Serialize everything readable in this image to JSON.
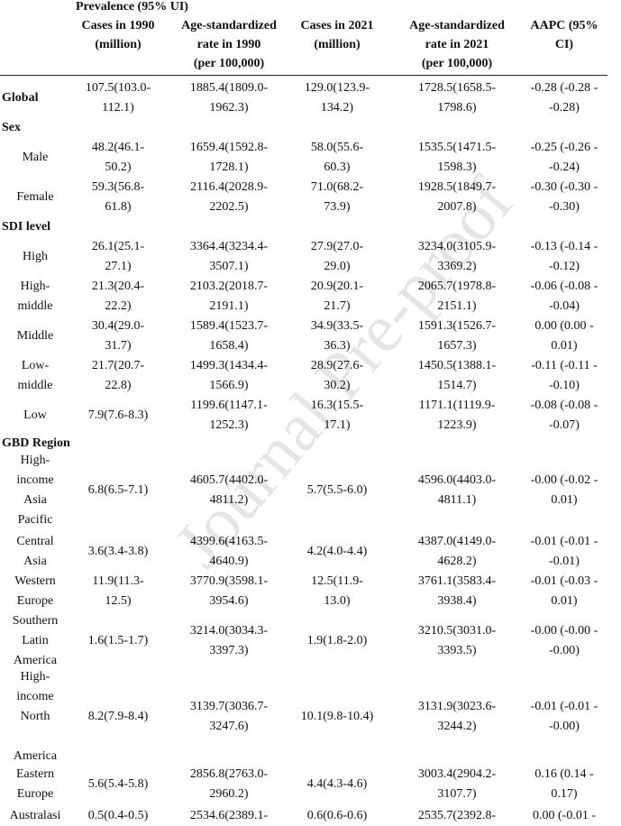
{
  "header": {
    "super_title": "Prevalence (95% UI)",
    "col1": [
      "Cases in 1990",
      "(million)"
    ],
    "col2": [
      "Age-standardized",
      "rate in 1990",
      "(per 100,000)"
    ],
    "col3": [
      "Cases in 2021",
      "(million)"
    ],
    "col4": [
      "Age-standardized",
      "rate in 2021",
      "(per 100,000)"
    ],
    "col5": [
      "AAPC (95%",
      "CI)"
    ]
  },
  "watermark": "Journal Pre-proof",
  "rows": [
    {
      "label": [
        "Global"
      ],
      "kind": "group-bold",
      "cells": [
        [
          "107.5(103.0-",
          "112.1)"
        ],
        [
          "1885.4(1809.0-",
          "1962.3)"
        ],
        [
          "129.0(123.9-",
          "134.2)"
        ],
        [
          "1728.5(1658.5-",
          "1798.6)"
        ],
        [
          "-0.28 (-0.28 -",
          "-0.28)"
        ]
      ]
    },
    {
      "label": [
        "Sex"
      ],
      "kind": "section"
    },
    {
      "label": [
        "Male"
      ],
      "kind": "sub",
      "cells": [
        [
          "48.2(46.1-",
          "50.2)"
        ],
        [
          "1659.4(1592.8-",
          "1728.1)"
        ],
        [
          "58.0(55.6-",
          "60.3)"
        ],
        [
          "1535.5(1471.5-",
          "1598.3)"
        ],
        [
          "-0.25 (-0.26 -",
          "-0.24)"
        ]
      ]
    },
    {
      "label": [
        "Female"
      ],
      "kind": "sub",
      "cells": [
        [
          "59.3(56.8-",
          "61.8)"
        ],
        [
          "2116.4(2028.9-",
          "2202.5)"
        ],
        [
          "71.0(68.2-",
          "73.9)"
        ],
        [
          "1928.5(1849.7-",
          "2007.8)"
        ],
        [
          "-0.30 (-0.30 -",
          "-0.30)"
        ]
      ]
    },
    {
      "label": [
        "SDI level"
      ],
      "kind": "section"
    },
    {
      "label": [
        "High"
      ],
      "kind": "sub",
      "cells": [
        [
          "26.1(25.1-",
          "27.1)"
        ],
        [
          "3364.4(3234.4-",
          "3507.1)"
        ],
        [
          "27.9(27.0-",
          "29.0)"
        ],
        [
          "3234.0(3105.9-",
          "3369.2)"
        ],
        [
          "-0.13 (-0.14 -",
          "-0.12)"
        ]
      ]
    },
    {
      "label": [
        "High-",
        "middle"
      ],
      "kind": "sub",
      "cells": [
        [
          "21.3(20.4-",
          "22.2)"
        ],
        [
          "2103.2(2018.7-",
          "2191.1)"
        ],
        [
          "20.9(20.1-",
          "21.7)"
        ],
        [
          "2065.7(1978.8-",
          "2151.1)"
        ],
        [
          "-0.06 (-0.08 -",
          "-0.04)"
        ]
      ]
    },
    {
      "label": [
        "Middle"
      ],
      "kind": "sub",
      "cells": [
        [
          "30.4(29.0-",
          "31.7)"
        ],
        [
          "1589.4(1523.7-",
          "1658.4)"
        ],
        [
          "34.9(33.5-",
          "36.3)"
        ],
        [
          "1591.3(1526.7-",
          "1657.3)"
        ],
        [
          "0.00 (0.00 -",
          "0.01)"
        ]
      ]
    },
    {
      "label": [
        "Low-",
        "middle"
      ],
      "kind": "sub",
      "cells": [
        [
          "21.7(20.7-",
          "22.8)"
        ],
        [
          "1499.3(1434.4-",
          "1566.9)"
        ],
        [
          "28.9(27.6-",
          "30.2)"
        ],
        [
          "1450.5(1388.1-",
          "1514.7)"
        ],
        [
          "-0.11 (-0.11 -",
          "-0.10)"
        ]
      ]
    },
    {
      "label": [
        "Low"
      ],
      "kind": "sub",
      "cells": [
        [
          "7.9(7.6-8.3)"
        ],
        [
          "1199.6(1147.1-",
          "1252.3)"
        ],
        [
          "16.3(15.5-",
          "17.1)"
        ],
        [
          "1171.1(1119.9-",
          "1223.9)"
        ],
        [
          "-0.08 (-0.08 -",
          "-0.07)"
        ]
      ]
    },
    {
      "label": [
        "GBD Region"
      ],
      "kind": "section"
    },
    {
      "label": [
        "High-",
        "income",
        "Asia",
        "Pacific"
      ],
      "kind": "sub",
      "cells": [
        [
          "6.8(6.5-7.1)"
        ],
        [
          "4605.7(4402.0-",
          "4811.2)"
        ],
        [
          "5.7(5.5-6.0)"
        ],
        [
          "4596.0(4403.0-",
          "4811.1)"
        ],
        [
          "-0.00 (-0.02 -",
          "0.01)"
        ]
      ]
    },
    {
      "label": [
        "Central",
        "Asia"
      ],
      "kind": "sub",
      "cells": [
        [
          "3.6(3.4-3.8)"
        ],
        [
          "4399.6(4163.5-",
          "4640.9)"
        ],
        [
          "4.2(4.0-4.4)"
        ],
        [
          "4387.0(4149.0-",
          "4628.2)"
        ],
        [
          "-0.01 (-0.01 -",
          "-0.01)"
        ]
      ]
    },
    {
      "label": [
        "Western",
        "Europe"
      ],
      "kind": "sub",
      "cells": [
        [
          "11.9(11.3-",
          "12.5)"
        ],
        [
          "3770.9(3598.1-",
          "3954.6)"
        ],
        [
          "12.5(11.9-",
          "13.0)"
        ],
        [
          "3761.1(3583.4-",
          "3938.4)"
        ],
        [
          "-0.01 (-0.03 -",
          "0.01)"
        ]
      ]
    },
    {
      "label": [
        "Southern",
        "Latin",
        "America"
      ],
      "kind": "sub",
      "cells": [
        [
          "1.6(1.5-1.7)"
        ],
        [
          "3214.0(3034.3-",
          "3397.3)"
        ],
        [
          "1.9(1.8-2.0)"
        ],
        [
          "3210.5(3031.0-",
          "3393.5)"
        ],
        [
          "-0.00 (-0.00 -",
          "-0.00)"
        ]
      ]
    },
    {
      "label": [
        "High-",
        "income",
        "North",
        "",
        "America"
      ],
      "kind": "sub",
      "cells": [
        [
          "8.2(7.9-8.4)"
        ],
        [
          "3139.7(3036.7-",
          "3247.6)"
        ],
        [
          "10.1(9.8-10.4)"
        ],
        [
          "3131.9(3023.6-",
          "3244.2)"
        ],
        [
          "-0.01 (-0.01 -",
          "-0.00)"
        ]
      ]
    },
    {
      "label": [
        "Eastern",
        "Europe"
      ],
      "kind": "sub",
      "cells": [
        [
          "5.6(5.4-5.8)"
        ],
        [
          "2856.8(2763.0-",
          "2960.2)"
        ],
        [
          "4.4(4.3-4.6)"
        ],
        [
          "3003.4(2904.2-",
          "3107.7)"
        ],
        [
          "0.16 (0.14 -",
          "0.17)"
        ]
      ]
    },
    {
      "label": [
        "Australasi"
      ],
      "kind": "sub",
      "cells": [
        [
          "0.5(0.4-0.5)"
        ],
        [
          "2534.6(2389.1-"
        ],
        [
          "0.6(0.6-0.6)"
        ],
        [
          "2535.7(2392.8-"
        ],
        [
          "0.00 (-0.01 -"
        ]
      ]
    }
  ]
}
